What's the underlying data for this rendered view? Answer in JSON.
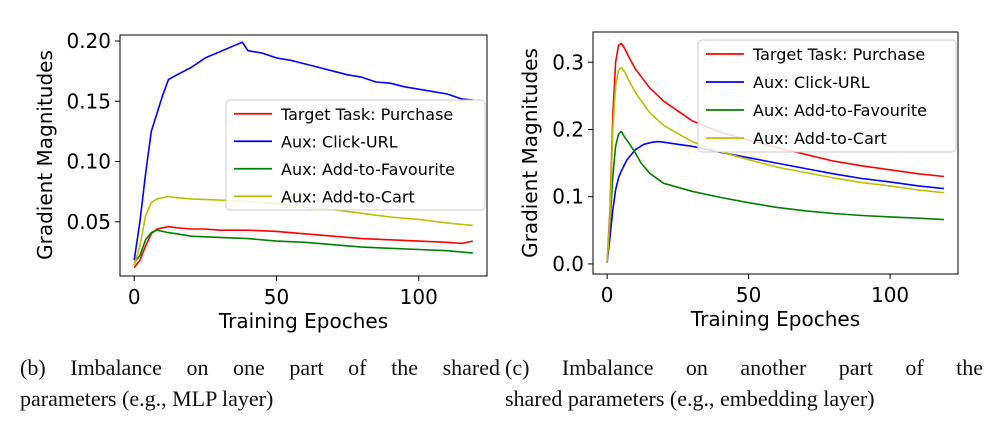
{
  "chart_data": [
    {
      "type": "line",
      "panel": "b",
      "xlabel": "Training Epoches",
      "ylabel": "Gradient Magnitudes",
      "xlim": [
        -5,
        124
      ],
      "ylim": [
        0.005,
        0.205
      ],
      "xticks": [
        0,
        50,
        100
      ],
      "yticks": [
        0.05,
        0.1,
        0.15,
        0.2
      ],
      "ytick_labels": [
        "0.05",
        "0.10",
        "0.15",
        "0.20"
      ],
      "xtick_labels": [
        "0",
        "50",
        "100"
      ],
      "legend_position": "right",
      "series": [
        {
          "name": "Target Task: Purchase",
          "color": "#ff0000",
          "x": [
            0,
            2,
            4,
            6,
            8,
            10,
            12,
            15,
            20,
            25,
            30,
            40,
            50,
            60,
            70,
            80,
            90,
            100,
            110,
            115,
            119
          ],
          "y": [
            0.012,
            0.018,
            0.03,
            0.04,
            0.044,
            0.045,
            0.046,
            0.045,
            0.044,
            0.044,
            0.043,
            0.043,
            0.042,
            0.04,
            0.038,
            0.036,
            0.035,
            0.034,
            0.033,
            0.032,
            0.034
          ]
        },
        {
          "name": "Aux: Click-URL",
          "color": "#0000ff",
          "x": [
            0,
            2,
            4,
            6,
            8,
            10,
            12,
            15,
            20,
            25,
            30,
            35,
            38,
            40,
            45,
            50,
            55,
            60,
            65,
            70,
            75,
            80,
            85,
            90,
            95,
            100,
            105,
            110,
            115,
            119
          ],
          "y": [
            0.018,
            0.05,
            0.09,
            0.125,
            0.14,
            0.155,
            0.168,
            0.172,
            0.178,
            0.186,
            0.191,
            0.196,
            0.199,
            0.192,
            0.19,
            0.186,
            0.184,
            0.181,
            0.178,
            0.175,
            0.172,
            0.17,
            0.166,
            0.165,
            0.162,
            0.16,
            0.158,
            0.156,
            0.152,
            0.151
          ]
        },
        {
          "name": "Aux: Add-to-Favourite",
          "color": "#008000",
          "x": [
            0,
            2,
            4,
            6,
            8,
            10,
            12,
            15,
            20,
            30,
            40,
            50,
            60,
            70,
            80,
            90,
            100,
            110,
            119
          ],
          "y": [
            0.016,
            0.022,
            0.035,
            0.041,
            0.043,
            0.042,
            0.041,
            0.04,
            0.038,
            0.037,
            0.036,
            0.034,
            0.033,
            0.031,
            0.029,
            0.028,
            0.027,
            0.026,
            0.024
          ]
        },
        {
          "name": "Aux: Add-to-Cart",
          "color": "#bfbf00",
          "x": [
            0,
            2,
            4,
            6,
            8,
            10,
            12,
            15,
            20,
            30,
            40,
            50,
            60,
            70,
            80,
            90,
            100,
            110,
            119
          ],
          "y": [
            0.014,
            0.03,
            0.055,
            0.066,
            0.069,
            0.07,
            0.071,
            0.07,
            0.069,
            0.068,
            0.067,
            0.065,
            0.062,
            0.06,
            0.057,
            0.054,
            0.052,
            0.049,
            0.047
          ]
        }
      ]
    },
    {
      "type": "line",
      "panel": "c",
      "xlabel": "Training Epoches",
      "ylabel": "Gradient Magnitudes",
      "xlim": [
        -5,
        124
      ],
      "ylim": [
        -0.015,
        0.345
      ],
      "xticks": [
        0,
        50,
        100
      ],
      "yticks": [
        0.0,
        0.1,
        0.2,
        0.3
      ],
      "ytick_labels": [
        "0.0",
        "0.1",
        "0.2",
        "0.3"
      ],
      "xtick_labels": [
        "0",
        "50",
        "100"
      ],
      "legend_position": "top-right",
      "series": [
        {
          "name": "Target Task: Purchase",
          "color": "#ff0000",
          "x": [
            0,
            1,
            2,
            3,
            4,
            5,
            6,
            8,
            10,
            15,
            20,
            30,
            40,
            50,
            60,
            70,
            80,
            90,
            100,
            110,
            119
          ],
          "y": [
            0.002,
            0.08,
            0.22,
            0.3,
            0.325,
            0.328,
            0.322,
            0.305,
            0.29,
            0.262,
            0.242,
            0.213,
            0.196,
            0.184,
            0.173,
            0.163,
            0.153,
            0.146,
            0.14,
            0.134,
            0.13
          ]
        },
        {
          "name": "Aux: Click-URL",
          "color": "#0000ff",
          "x": [
            0,
            1,
            2,
            3,
            4,
            5,
            7,
            10,
            13,
            16,
            18,
            20,
            25,
            30,
            40,
            50,
            60,
            70,
            80,
            90,
            100,
            110,
            119
          ],
          "y": [
            0.002,
            0.04,
            0.08,
            0.11,
            0.128,
            0.138,
            0.155,
            0.17,
            0.178,
            0.181,
            0.182,
            0.181,
            0.178,
            0.175,
            0.166,
            0.158,
            0.15,
            0.142,
            0.134,
            0.127,
            0.122,
            0.116,
            0.112
          ]
        },
        {
          "name": "Aux: Add-to-Favourite",
          "color": "#008000",
          "x": [
            0,
            1,
            2,
            3,
            4,
            5,
            6,
            8,
            10,
            12,
            15,
            20,
            30,
            40,
            50,
            60,
            70,
            80,
            90,
            100,
            110,
            119
          ],
          "y": [
            0.002,
            0.06,
            0.13,
            0.175,
            0.193,
            0.197,
            0.19,
            0.178,
            0.165,
            0.15,
            0.135,
            0.12,
            0.108,
            0.099,
            0.091,
            0.084,
            0.079,
            0.075,
            0.072,
            0.07,
            0.068,
            0.066
          ]
        },
        {
          "name": "Aux: Add-to-Cart",
          "color": "#bfbf00",
          "x": [
            0,
            1,
            2,
            3,
            4,
            5,
            6,
            8,
            10,
            15,
            20,
            30,
            40,
            50,
            60,
            70,
            80,
            90,
            100,
            110,
            119
          ],
          "y": [
            0.002,
            0.07,
            0.2,
            0.265,
            0.288,
            0.292,
            0.287,
            0.27,
            0.255,
            0.225,
            0.206,
            0.182,
            0.167,
            0.155,
            0.144,
            0.136,
            0.128,
            0.121,
            0.116,
            0.11,
            0.106
          ]
        }
      ]
    }
  ],
  "captions": {
    "b": {
      "line1": "(b)  Imbalance on one part of the shared",
      "line2": "parameters (e.g., MLP layer)"
    },
    "c": {
      "line1": "(c)  Imbalance on another part of the",
      "line2": "shared parameters (e.g., embedding layer)"
    }
  }
}
